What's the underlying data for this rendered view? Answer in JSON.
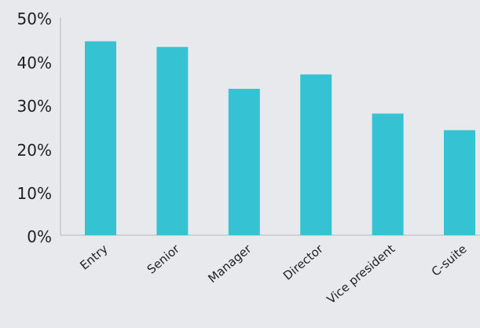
{
  "chart_data": {
    "type": "bar",
    "categories": [
      "Entry",
      "Senior",
      "Manager",
      "Director",
      "Vice president",
      "C-suite"
    ],
    "values": [
      44.5,
      43.2,
      33.6,
      36.9,
      27.9,
      24.1
    ],
    "value_unit": "%",
    "y_ticks": [
      "0%",
      "10%",
      "20%",
      "30%",
      "40%",
      "50%"
    ],
    "ylim": [
      0,
      50
    ],
    "grid": false,
    "legend": "none",
    "title": "",
    "xlabel": "",
    "ylabel": ""
  },
  "colors": {
    "background": "#e8e9ec",
    "bar": "#35c3d3",
    "axis": "#b8b8b8",
    "text": "#1f1f1f"
  }
}
